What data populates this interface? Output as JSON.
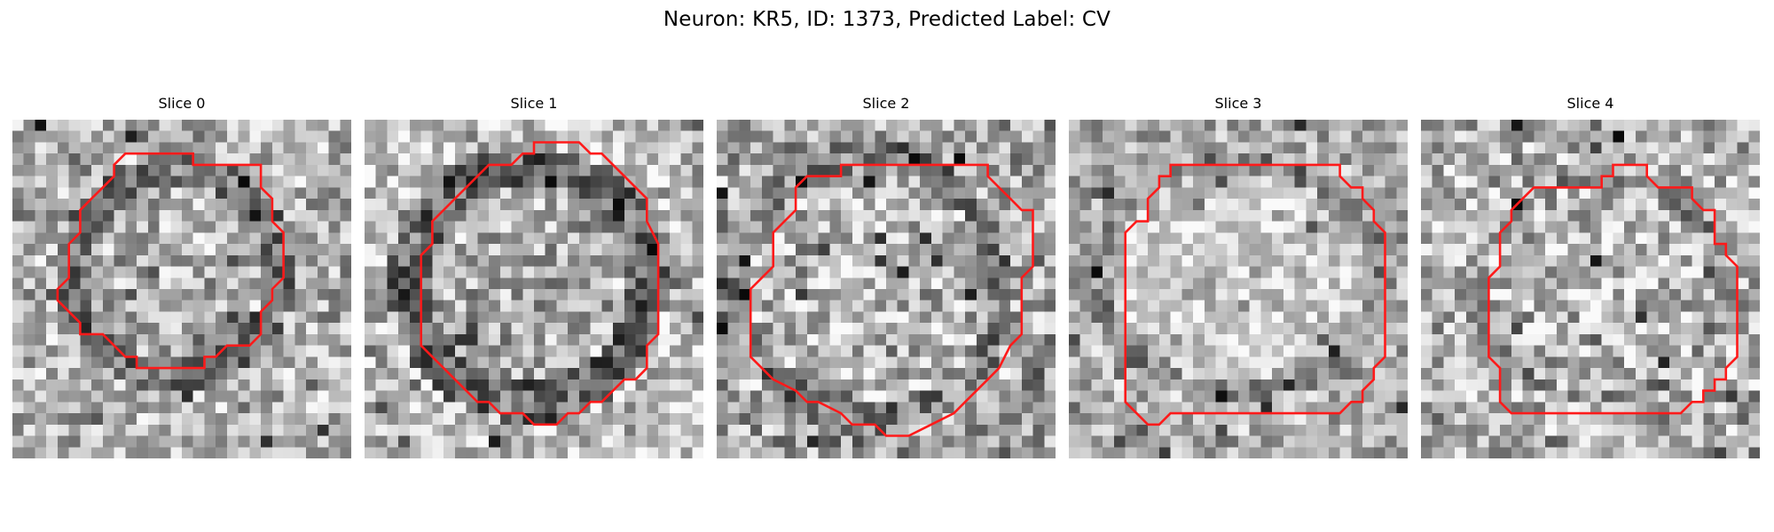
{
  "figure": {
    "title": "Neuron: KR5, ID: 1373, Predicted Label: CV"
  },
  "colors": {
    "contour": "#ff1a1a",
    "background": "#ffffff"
  },
  "panels": [
    {
      "title": "Slice 0",
      "image": "noisy-grayscale-patch"
    },
    {
      "title": "Slice 1",
      "image": "noisy-grayscale-patch"
    },
    {
      "title": "Slice 2",
      "image": "noisy-grayscale-patch"
    },
    {
      "title": "Slice 3",
      "image": "noisy-grayscale-patch"
    },
    {
      "title": "Slice 4",
      "image": "noisy-grayscale-patch"
    }
  ]
}
